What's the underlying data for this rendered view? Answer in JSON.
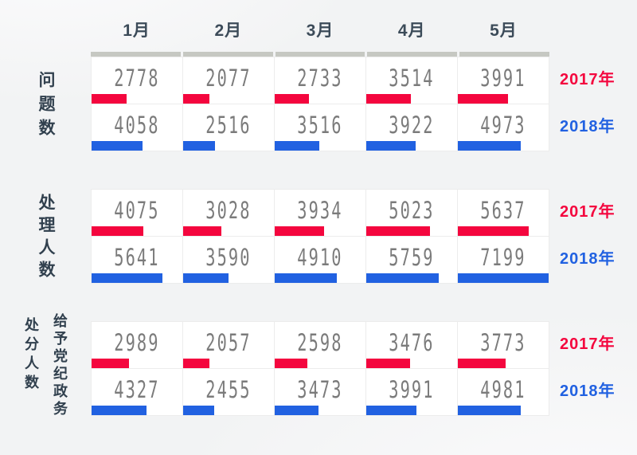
{
  "chart_data": {
    "type": "bar",
    "title": "",
    "orientation": "horizontal",
    "legend_position": "right",
    "grid": true,
    "scale_max": 7199,
    "categories": [
      "1月",
      "2月",
      "3月",
      "4月",
      "5月"
    ],
    "series_colors": {
      "2017年": "#f4063e",
      "2018年": "#2161e1"
    },
    "groups": [
      {
        "label_columns": [
          "问题数"
        ],
        "series": [
          {
            "name": "2017年",
            "values": [
              2778,
              2077,
              2733,
              3514,
              3991
            ]
          },
          {
            "name": "2018年",
            "values": [
              4058,
              2516,
              3516,
              3922,
              4973
            ]
          }
        ]
      },
      {
        "label_columns": [
          "处理人数"
        ],
        "series": [
          {
            "name": "2017年",
            "values": [
              4075,
              3028,
              3934,
              5023,
              5637
            ]
          },
          {
            "name": "2018年",
            "values": [
              5641,
              3590,
              4910,
              5759,
              7199
            ]
          }
        ]
      },
      {
        "label_columns": [
          "处分人数",
          "给予党纪政务"
        ],
        "series": [
          {
            "name": "2017年",
            "values": [
              2989,
              2057,
              2598,
              3476,
              3773
            ]
          },
          {
            "name": "2018年",
            "values": [
              4327,
              2455,
              3473,
              3991,
              4981
            ]
          }
        ]
      }
    ],
    "ui_colors": {
      "background": "#f2f3f4",
      "track": "#c6c8c2",
      "number": "#7b7b7b",
      "label": "#31404e",
      "month": "#3c4b59",
      "cell_border": "#ececec",
      "cell_bg": "#ffffff"
    }
  }
}
